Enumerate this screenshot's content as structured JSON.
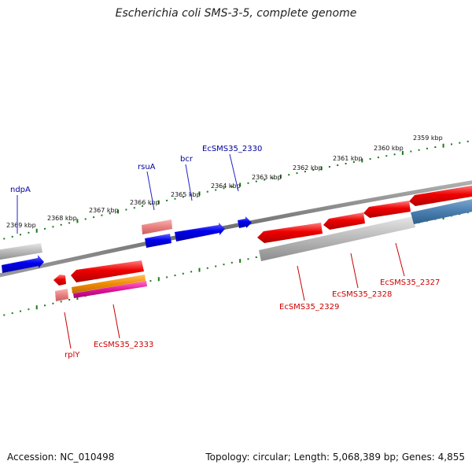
{
  "title": "Escherichia coli SMS-3-5, complete genome",
  "footer": {
    "accession": "Accession: NC_010498",
    "summary": "Topology: circular; Length: 5,068,389 bp; Genes: 4,855"
  },
  "colors": {
    "forward_gene": "#0000ee",
    "reverse_gene": "#ee0000",
    "forward_label": "#000099",
    "reverse_label": "#cc0000",
    "tick": "#1a7a1a",
    "backbone": "#777777",
    "pseudo_gray": "#b8b8b8",
    "steel": "#4a7fb0",
    "salmon": "#e98080",
    "orange": "#f08a00",
    "magenta": "#e0179a"
  },
  "scale_labels": [
    "2359 kbp",
    "2360 kbp",
    "2361 kbp",
    "2362 kbp",
    "2363 kbp",
    "2364 kbp",
    "2365 kbp",
    "2366 kbp",
    "2367 kbp",
    "2368 kbp",
    "2369 kbp"
  ],
  "gene_labels": {
    "forward": [
      "ndpA",
      "rsuA",
      "bcr",
      "EcSMS35_2330"
    ],
    "reverse": [
      "rplY",
      "EcSMS35_2333",
      "EcSMS35_2329",
      "EcSMS35_2328",
      "EcSMS35_2327"
    ]
  }
}
